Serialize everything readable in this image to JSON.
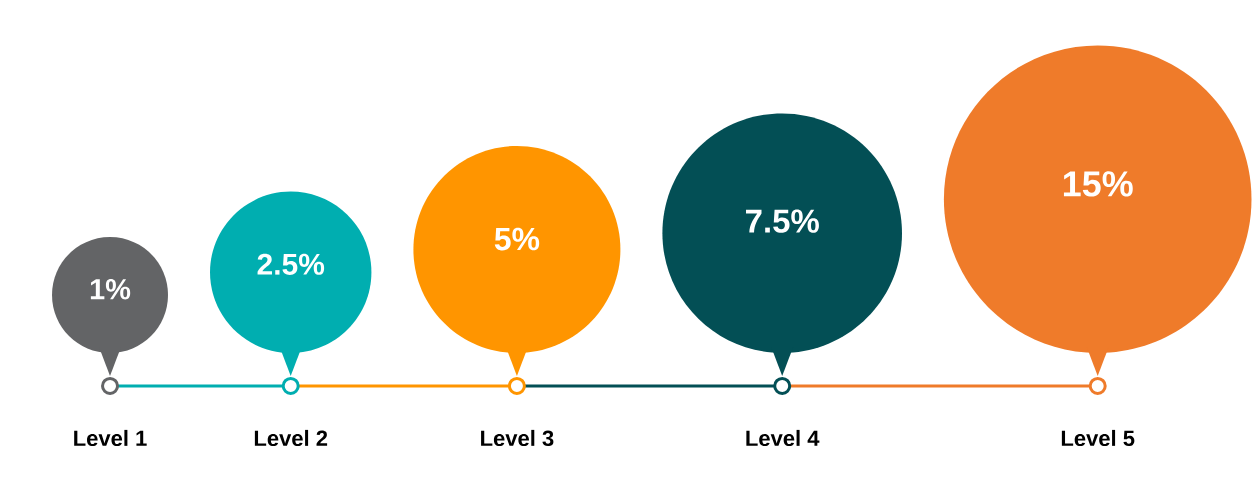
{
  "chart_data": {
    "type": "other",
    "categories": [
      "Level 1",
      "Level 2",
      "Level 3",
      "Level 4",
      "Level 5"
    ],
    "values": [
      1,
      2.5,
      5,
      7.5,
      15
    ],
    "value_labels": [
      "1%",
      "2.5%",
      "5%",
      "7.5%",
      "15%"
    ],
    "colors": [
      "#636466",
      "#00aeb0",
      "#ff9500",
      "#034f55",
      "#ef7b2a"
    ]
  }
}
